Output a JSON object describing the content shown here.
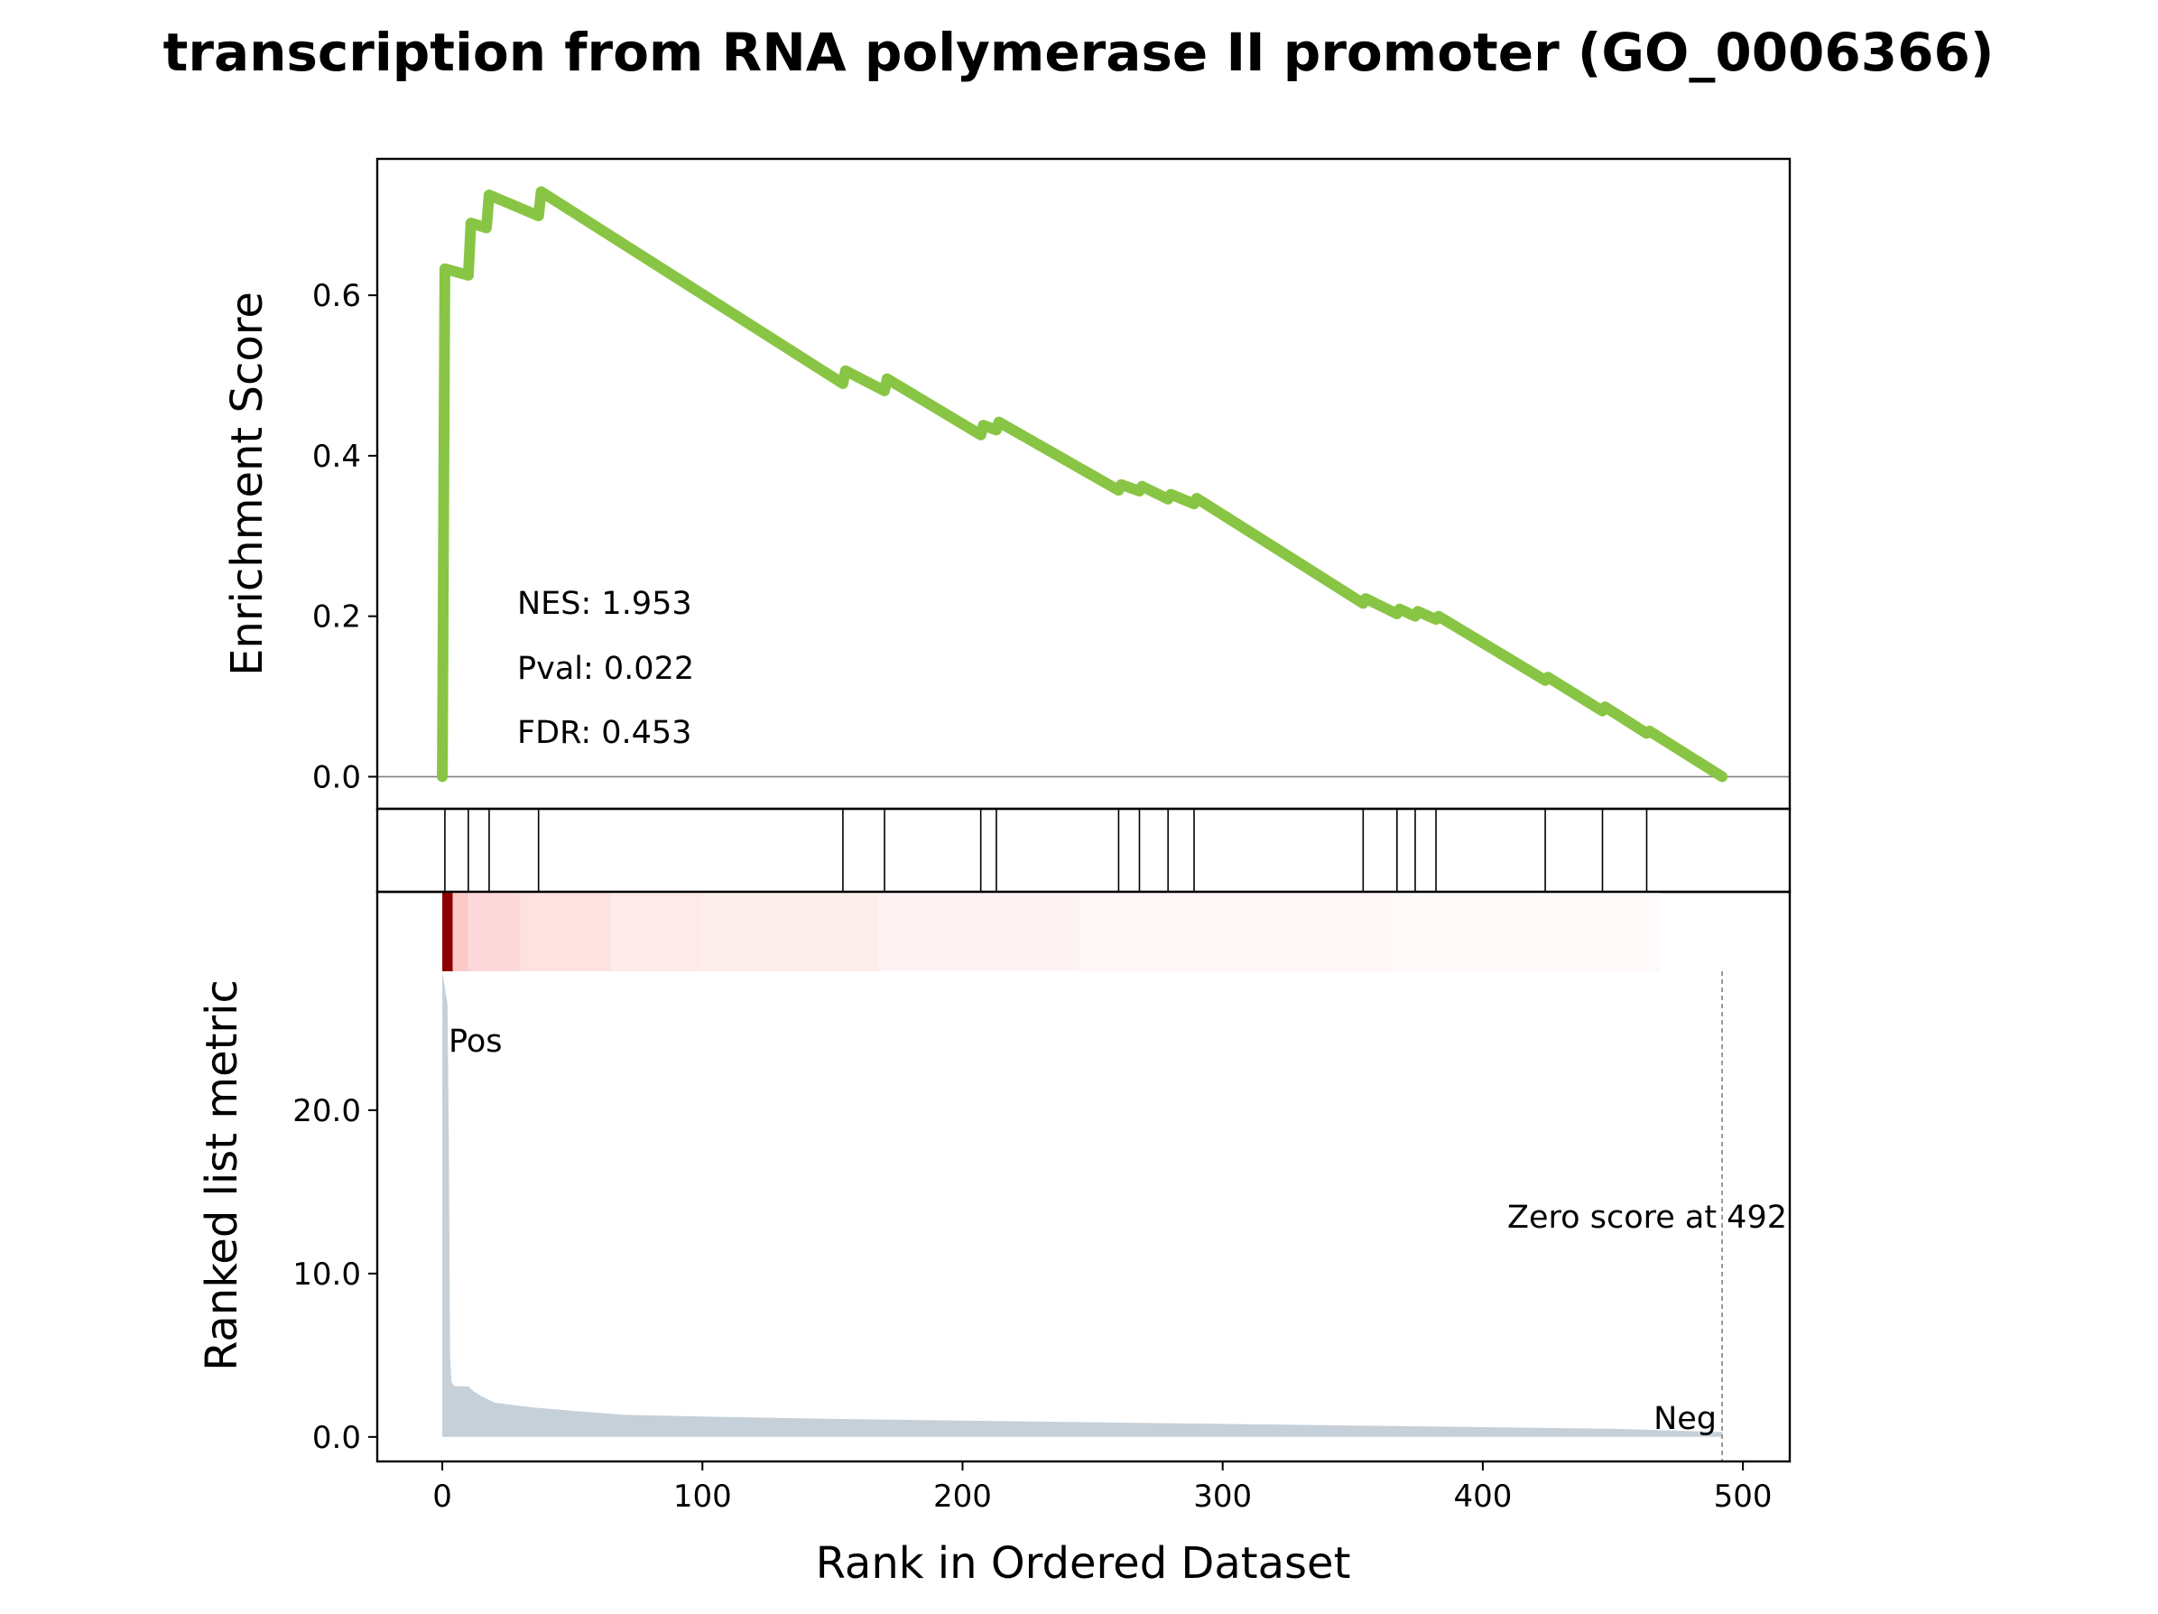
{
  "chart_data": {
    "type": "line",
    "title": "transcription from RNA polymerase II promoter (GO_0006366)",
    "xlabel": "Rank in Ordered Dataset",
    "xlim": [
      -25,
      518
    ],
    "x_ticks": [
      0,
      100,
      200,
      300,
      400,
      500
    ],
    "x_tick_labels": [
      "0",
      "100",
      "200",
      "300",
      "400",
      "500"
    ],
    "enrichment_panel": {
      "ylabel": "Enrichment Score",
      "ylim": [
        -0.04,
        0.77
      ],
      "y_ticks": [
        0.0,
        0.2,
        0.4,
        0.6
      ],
      "y_tick_labels": [
        "0.0",
        "0.2",
        "0.4",
        "0.6"
      ],
      "line_color": "#88c544",
      "zero_line_color": "#808080",
      "running_es": {
        "x": [
          0,
          0,
          1,
          10,
          10,
          11,
          17,
          18,
          37,
          38,
          154,
          155,
          170,
          171,
          207,
          208,
          213,
          214,
          260,
          261,
          268,
          269,
          279,
          280,
          289,
          290,
          354,
          355,
          367,
          368,
          374,
          375,
          382,
          383,
          424,
          425,
          446,
          447,
          463,
          464,
          492
        ],
        "y": [
          0.0,
          0.0,
          0.633,
          0.625,
          0.625,
          0.69,
          0.684,
          0.725,
          0.699,
          0.729,
          0.49,
          0.506,
          0.481,
          0.496,
          0.426,
          0.438,
          0.432,
          0.442,
          0.357,
          0.364,
          0.356,
          0.362,
          0.346,
          0.352,
          0.34,
          0.347,
          0.216,
          0.222,
          0.203,
          0.209,
          0.2,
          0.206,
          0.196,
          0.2,
          0.12,
          0.124,
          0.082,
          0.087,
          0.054,
          0.057,
          0.0
        ]
      },
      "annotations": {
        "nes": "NES: 1.953",
        "pval": "Pval: 0.022",
        "fdr": "FDR: 0.453"
      }
    },
    "hits_panel": {
      "hit_positions": [
        1,
        10,
        18,
        37,
        154,
        170,
        207,
        213,
        260,
        268,
        279,
        289,
        354,
        367,
        374,
        382,
        424,
        446,
        463
      ]
    },
    "heatmap_panel": {
      "description_colors": [
        "#8b0000",
        "#ffffff"
      ],
      "segments": [
        {
          "start": 0,
          "end": 4,
          "color": "#8b0000"
        },
        {
          "start": 4,
          "end": 10,
          "color": "#fcc9c9"
        },
        {
          "start": 10,
          "end": 30,
          "color": "#fdd8d8"
        },
        {
          "start": 30,
          "end": 65,
          "color": "#fde2e2"
        },
        {
          "start": 65,
          "end": 100,
          "color": "#feeaea"
        },
        {
          "start": 100,
          "end": 168,
          "color": "#feeded"
        },
        {
          "start": 168,
          "end": 245,
          "color": "#fef3f3"
        },
        {
          "start": 245,
          "end": 365,
          "color": "#fff6f6"
        },
        {
          "start": 365,
          "end": 468,
          "color": "#fff9f9"
        }
      ],
      "xlim_end": 468
    },
    "metric_panel": {
      "ylabel": "Ranked list metric",
      "ylim": [
        -1.5,
        28.5
      ],
      "y_ticks": [
        0.0,
        10.0,
        20.0
      ],
      "y_tick_labels": [
        "0.0",
        "10.0",
        "20.0"
      ],
      "fill_color": "#c6d0d8",
      "pos_label": "Pos",
      "pos_color": "#ff0000",
      "neg_label": "Neg",
      "neg_color": "#0000ff",
      "zero_score_label": "Zero score at 492",
      "zero_score_rank": 492,
      "metric": {
        "x": [
          0,
          1,
          2,
          2.5,
          3,
          3.5,
          4,
          5,
          10,
          12,
          15,
          20,
          25,
          35,
          50,
          70,
          100,
          150,
          200,
          250,
          300,
          350,
          400,
          450,
          492
        ],
        "y": [
          28.5,
          27.5,
          26.5,
          18.0,
          5.0,
          3.4,
          3.2,
          3.1,
          3.1,
          2.8,
          2.5,
          2.1,
          2.0,
          1.8,
          1.6,
          1.35,
          1.25,
          1.1,
          1.0,
          0.9,
          0.8,
          0.7,
          0.6,
          0.5,
          0.3
        ]
      }
    }
  }
}
